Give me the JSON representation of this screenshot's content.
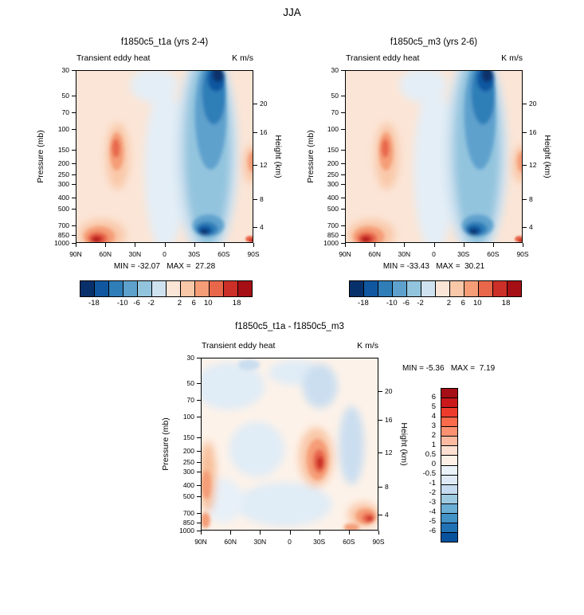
{
  "page_title": "JJA",
  "axes": {
    "pressure_label": "Pressure (mb)",
    "height_label": "Height (km)",
    "pressure_ticks": [
      "30",
      "50",
      "70",
      "100",
      "150",
      "200",
      "250",
      "300",
      "400",
      "500",
      "700",
      "850",
      "1000"
    ],
    "height_ticks": [
      "20",
      "16",
      "12",
      "8",
      "4"
    ],
    "lat_ticks": [
      "90N",
      "60N",
      "30N",
      "0",
      "30S",
      "60S",
      "90S"
    ]
  },
  "panels": [
    {
      "title": "f1850c5_t1a (yrs 2-4)",
      "field_label": "Transient eddy heat",
      "units": "K m/s",
      "stats": "MIN = -32.07   MAX =  27.28"
    },
    {
      "title": "f1850c5_m3 (yrs 2-6)",
      "field_label": "Transient eddy heat",
      "units": "K m/s",
      "stats": "MIN = -33.43   MAX =  30.21"
    },
    {
      "title": "f1850c5_t1a - f1850c5_m3",
      "field_label": "Transient eddy heat",
      "units": "K m/s",
      "stats": "MIN = -5.36   MAX =  7.19"
    }
  ],
  "colorbar_top": {
    "levels": [
      -18,
      -14,
      -10,
      -6,
      -2,
      0,
      2,
      6,
      10,
      14,
      18
    ],
    "labels": [
      "-18",
      "-10",
      "-6",
      "-2",
      "2",
      "6",
      "10",
      "18"
    ],
    "colors": [
      "#08306b",
      "#1057a0",
      "#2f7eb8",
      "#5ea1cd",
      "#93c4de",
      "#cfe2f0",
      "#fbe5d6",
      "#f9c8a9",
      "#f59d77",
      "#e8674b",
      "#cb2f27",
      "#a50f15"
    ]
  },
  "colorbar_diff": {
    "levels": [
      6,
      5,
      4,
      3,
      2,
      1,
      0.5,
      0,
      -0.5,
      -1,
      -2,
      -3,
      -4,
      -5,
      -6
    ],
    "labels": [
      "6",
      "5",
      "4",
      "3",
      "2",
      "1",
      "0.5",
      "0",
      "-0.5",
      "-1",
      "-2",
      "-3",
      "-4",
      "-5",
      "-6"
    ],
    "colors": [
      "#a50f15",
      "#cb181d",
      "#ef3b2c",
      "#fb6a4a",
      "#fc9272",
      "#fcbba1",
      "#fee0d2",
      "#fdf0e6",
      "#eaf2fa",
      "#deebf7",
      "#c6dbef",
      "#9ecae1",
      "#6baed6",
      "#4292c6",
      "#2171b5",
      "#08519c"
    ]
  },
  "chart_data": [
    {
      "type": "heatmap",
      "title": "f1850c5_t1a (yrs 2-4)",
      "variable": "Transient eddy heat",
      "units": "K m/s",
      "season": "JJA",
      "x_ticks": [
        "90N",
        "60N",
        "30N",
        "0",
        "30S",
        "60S",
        "90S"
      ],
      "ylabel": "Pressure (mb)",
      "y_ticks": [
        30,
        50,
        70,
        100,
        150,
        200,
        250,
        300,
        400,
        500,
        700,
        850,
        1000
      ],
      "y2label": "Height (km)",
      "y2_ticks": [
        20,
        16,
        12,
        8,
        4
      ],
      "min": -32.07,
      "max": 27.28,
      "contour_levels": [
        -18,
        -14,
        -10,
        -6,
        -2,
        0,
        2,
        6,
        10,
        14,
        18
      ]
    },
    {
      "type": "heatmap",
      "title": "f1850c5_m3 (yrs 2-6)",
      "variable": "Transient eddy heat",
      "units": "K m/s",
      "season": "JJA",
      "x_ticks": [
        "90N",
        "60N",
        "30N",
        "0",
        "30S",
        "60S",
        "90S"
      ],
      "ylabel": "Pressure (mb)",
      "y_ticks": [
        30,
        50,
        70,
        100,
        150,
        200,
        250,
        300,
        400,
        500,
        700,
        850,
        1000
      ],
      "y2label": "Height (km)",
      "y2_ticks": [
        20,
        16,
        12,
        8,
        4
      ],
      "min": -33.43,
      "max": 30.21,
      "contour_levels": [
        -18,
        -14,
        -10,
        -6,
        -2,
        0,
        2,
        6,
        10,
        14,
        18
      ]
    },
    {
      "type": "heatmap",
      "title": "f1850c5_t1a - f1850c5_m3",
      "variable": "Transient eddy heat",
      "units": "K m/s",
      "season": "JJA",
      "x_ticks": [
        "90N",
        "60N",
        "30N",
        "0",
        "30S",
        "60S",
        "90S"
      ],
      "ylabel": "Pressure (mb)",
      "y_ticks": [
        30,
        50,
        70,
        100,
        150,
        200,
        250,
        300,
        400,
        500,
        700,
        850,
        1000
      ],
      "y2label": "Height (km)",
      "y2_ticks": [
        20,
        16,
        12,
        8,
        4
      ],
      "min": -5.36,
      "max": 7.19,
      "contour_levels": [
        -6,
        -5,
        -4,
        -3,
        -2,
        -1,
        -0.5,
        0,
        0.5,
        1,
        2,
        3,
        4,
        5,
        6
      ]
    }
  ]
}
